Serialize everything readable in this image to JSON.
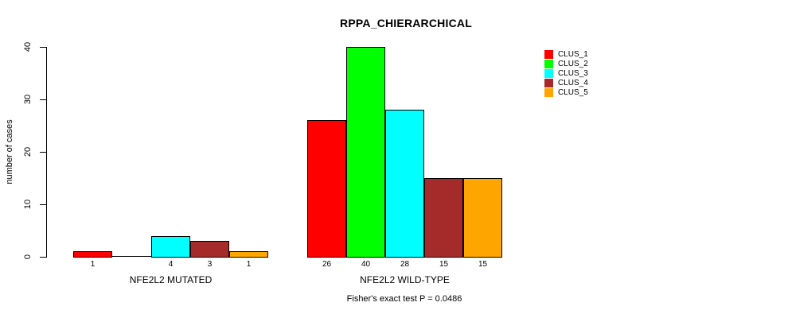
{
  "title": "RPPA_CHIERARCHICAL",
  "caption": "Fisher's exact test P = 0.0486",
  "chart_data": {
    "type": "bar",
    "title": "RPPA_CHIERARCHICAL",
    "xlabel": "",
    "ylabel": "number of cases",
    "ylim": [
      0,
      40
    ],
    "yticks": [
      0,
      10,
      20,
      30,
      40
    ],
    "grid": false,
    "legend_position": "top-right",
    "categories": [
      "NFE2L2 MUTATED",
      "NFE2L2 WILD-TYPE"
    ],
    "series": [
      {
        "name": "CLUS_1",
        "color": "#ff0000",
        "values": [
          1,
          26
        ]
      },
      {
        "name": "CLUS_2",
        "color": "#00ff00",
        "values": [
          0,
          40
        ]
      },
      {
        "name": "CLUS_3",
        "color": "#00ffff",
        "values": [
          4,
          28
        ]
      },
      {
        "name": "CLUS_4",
        "color": "#a52a2a",
        "values": [
          3,
          15
        ]
      },
      {
        "name": "CLUS_5",
        "color": "#ffa500",
        "values": [
          1,
          15
        ]
      }
    ],
    "bar_labels": [
      [
        "1",
        "",
        "4",
        "3",
        "1"
      ],
      [
        "26",
        "40",
        "28",
        "15",
        "15"
      ]
    ],
    "annotation": "Fisher's exact test P = 0.0486",
    "bar_border_color": "#000000",
    "axis_color": "#000000"
  }
}
